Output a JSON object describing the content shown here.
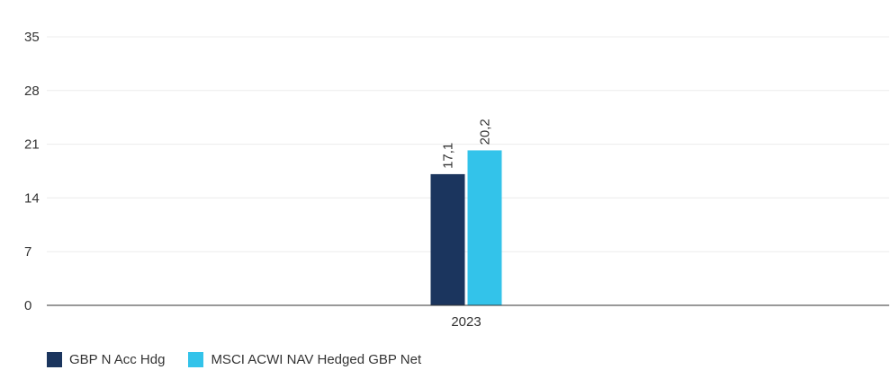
{
  "chart_data": {
    "type": "bar",
    "categories": [
      "2023"
    ],
    "series": [
      {
        "name": "GBP N Acc Hdg",
        "values": [
          17.1
        ],
        "labels": [
          "17,1"
        ],
        "color": "#1b355e"
      },
      {
        "name": "MSCI ACWI NAV Hedged GBP Net",
        "values": [
          20.2
        ],
        "labels": [
          "20,2"
        ],
        "color": "#33c3ea"
      }
    ],
    "title": "",
    "xlabel": "",
    "ylabel": "",
    "ylim": [
      0,
      35
    ],
    "yticks": [
      0,
      7,
      14,
      21,
      28,
      35
    ],
    "grid": true,
    "legend_position": "bottom-left"
  }
}
